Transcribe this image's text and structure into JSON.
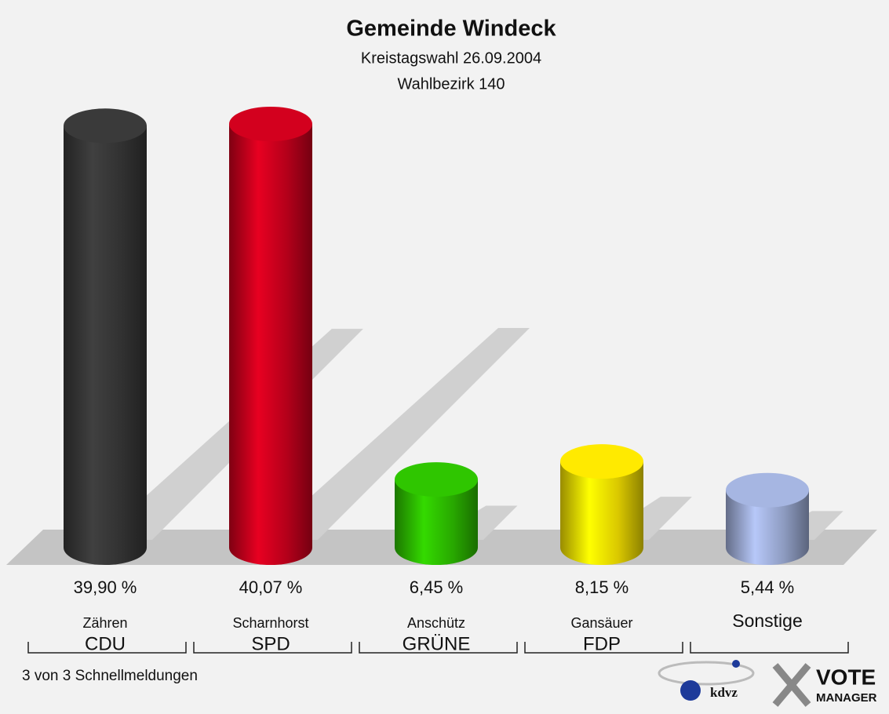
{
  "chart_data": {
    "type": "bar",
    "title": "Gemeinde Windeck",
    "subtitle": "Kreistagswahl 26.09.2004",
    "subtitle2": "Wahlbezirk 140",
    "categories": [
      "CDU",
      "SPD",
      "GRÜNE",
      "FDP",
      null
    ],
    "candidates": [
      "Zähren",
      "Scharnhorst",
      "Anschütz",
      "Gansäuer",
      "Sonstige"
    ],
    "values": [
      39.9,
      40.07,
      6.45,
      8.15,
      5.44
    ],
    "value_labels": [
      "39,90 %",
      "40,07 %",
      "6,45 %",
      "8,15 %",
      "5,44 %"
    ],
    "colors": [
      "#3a3a3a",
      "#d3001e",
      "#2fc600",
      "#ffea00",
      "#a6b6e2"
    ],
    "footer": "3 von 3 Schnellmeldungen"
  },
  "logo": {
    "brand": "kdvz",
    "vote": "VOTE",
    "manager": "MANAGER"
  }
}
